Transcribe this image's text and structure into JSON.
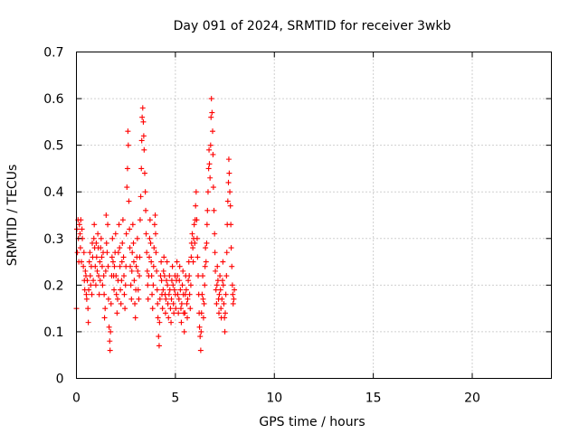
{
  "chart_data": {
    "type": "scatter",
    "title": "Day 091 of 2024, SRMTID for receiver 3wkb",
    "xlabel": "GPS time / hours",
    "ylabel": "SRMTID / TECUs",
    "xlim": [
      0,
      24
    ],
    "ylim": [
      0,
      0.7
    ],
    "xticks": [
      0,
      5,
      10,
      15,
      20
    ],
    "yticks": [
      0,
      0.1,
      0.2,
      0.3,
      0.4,
      0.5,
      0.6,
      0.7
    ],
    "xtick_labels": [
      "0",
      "5",
      "10",
      "15",
      "20"
    ],
    "ytick_labels": [
      "0",
      "0.1",
      "0.2",
      "0.3",
      "0.4",
      "0.5",
      "0.6",
      "0.7"
    ],
    "grid": true,
    "marker": "+",
    "color": "#ff0000",
    "series": [
      {
        "name": "SRMTID",
        "points": [
          [
            0.0,
            0.15
          ],
          [
            0.02,
            0.32
          ],
          [
            0.05,
            0.27
          ],
          [
            0.08,
            0.34
          ],
          [
            0.1,
            0.3
          ],
          [
            0.12,
            0.25
          ],
          [
            0.15,
            0.33
          ],
          [
            0.18,
            0.31
          ],
          [
            0.2,
            0.28
          ],
          [
            0.22,
            0.34
          ],
          [
            0.25,
            0.25
          ],
          [
            0.28,
            0.32
          ],
          [
            0.3,
            0.3
          ],
          [
            0.35,
            0.24
          ],
          [
            0.38,
            0.27
          ],
          [
            0.4,
            0.21
          ],
          [
            0.42,
            0.19
          ],
          [
            0.45,
            0.23
          ],
          [
            0.48,
            0.22
          ],
          [
            0.5,
            0.18
          ],
          [
            0.52,
            0.17
          ],
          [
            0.55,
            0.21
          ],
          [
            0.58,
            0.15
          ],
          [
            0.6,
            0.12
          ],
          [
            0.62,
            0.19
          ],
          [
            0.65,
            0.25
          ],
          [
            0.68,
            0.27
          ],
          [
            0.7,
            0.22
          ],
          [
            0.72,
            0.2
          ],
          [
            0.75,
            0.24
          ],
          [
            0.78,
            0.18
          ],
          [
            0.8,
            0.29
          ],
          [
            0.82,
            0.26
          ],
          [
            0.85,
            0.21
          ],
          [
            0.88,
            0.3
          ],
          [
            0.9,
            0.33
          ],
          [
            0.92,
            0.28
          ],
          [
            0.95,
            0.24
          ],
          [
            0.98,
            0.2
          ],
          [
            1.0,
            0.29
          ],
          [
            1.02,
            0.26
          ],
          [
            1.05,
            0.23
          ],
          [
            1.08,
            0.31
          ],
          [
            1.1,
            0.28
          ],
          [
            1.12,
            0.22
          ],
          [
            1.15,
            0.18
          ],
          [
            1.18,
            0.25
          ],
          [
            1.2,
            0.21
          ],
          [
            1.22,
            0.28
          ],
          [
            1.25,
            0.3
          ],
          [
            1.28,
            0.26
          ],
          [
            1.3,
            0.24
          ],
          [
            1.32,
            0.2
          ],
          [
            1.35,
            0.27
          ],
          [
            1.38,
            0.22
          ],
          [
            1.4,
            0.18
          ],
          [
            1.42,
            0.13
          ],
          [
            1.45,
            0.15
          ],
          [
            1.48,
            0.23
          ],
          [
            1.5,
            0.35
          ],
          [
            1.52,
            0.29
          ],
          [
            1.55,
            0.27
          ],
          [
            1.58,
            0.33
          ],
          [
            1.6,
            0.24
          ],
          [
            1.62,
            0.17
          ],
          [
            1.65,
            0.11
          ],
          [
            1.68,
            0.08
          ],
          [
            1.7,
            0.06
          ],
          [
            1.72,
            0.1
          ],
          [
            1.75,
            0.16
          ],
          [
            1.78,
            0.22
          ],
          [
            1.8,
            0.26
          ],
          [
            1.82,
            0.3
          ],
          [
            1.85,
            0.25
          ],
          [
            1.88,
            0.22
          ],
          [
            1.9,
            0.19
          ],
          [
            1.92,
            0.24
          ],
          [
            1.95,
            0.27
          ],
          [
            1.98,
            0.31
          ],
          [
            2.0,
            0.22
          ],
          [
            2.02,
            0.18
          ],
          [
            2.05,
            0.14
          ],
          [
            2.08,
            0.17
          ],
          [
            2.1,
            0.21
          ],
          [
            2.12,
            0.27
          ],
          [
            2.15,
            0.33
          ],
          [
            2.18,
            0.28
          ],
          [
            2.2,
            0.24
          ],
          [
            2.22,
            0.19
          ],
          [
            2.25,
            0.16
          ],
          [
            2.28,
            0.21
          ],
          [
            2.3,
            0.25
          ],
          [
            2.32,
            0.29
          ],
          [
            2.35,
            0.34
          ],
          [
            2.38,
            0.26
          ],
          [
            2.4,
            0.22
          ],
          [
            2.42,
            0.18
          ],
          [
            2.45,
            0.15
          ],
          [
            2.48,
            0.2
          ],
          [
            2.5,
            0.24
          ],
          [
            2.52,
            0.31
          ],
          [
            2.55,
            0.41
          ],
          [
            2.58,
            0.45
          ],
          [
            2.6,
            0.53
          ],
          [
            2.62,
            0.5
          ],
          [
            2.65,
            0.38
          ],
          [
            2.68,
            0.32
          ],
          [
            2.7,
            0.28
          ],
          [
            2.72,
            0.24
          ],
          [
            2.75,
            0.2
          ],
          [
            2.78,
            0.17
          ],
          [
            2.8,
            0.23
          ],
          [
            2.82,
            0.27
          ],
          [
            2.85,
            0.33
          ],
          [
            2.88,
            0.29
          ],
          [
            2.9,
            0.25
          ],
          [
            2.92,
            0.21
          ],
          [
            2.95,
            0.16
          ],
          [
            2.98,
            0.13
          ],
          [
            3.0,
            0.19
          ],
          [
            3.02,
            0.24
          ],
          [
            3.05,
            0.26
          ],
          [
            3.08,
            0.3
          ],
          [
            3.1,
            0.23
          ],
          [
            3.12,
            0.19
          ],
          [
            3.15,
            0.17
          ],
          [
            3.18,
            0.22
          ],
          [
            3.2,
            0.26
          ],
          [
            3.22,
            0.34
          ],
          [
            3.25,
            0.39
          ],
          [
            3.28,
            0.45
          ],
          [
            3.3,
            0.51
          ],
          [
            3.32,
            0.56
          ],
          [
            3.35,
            0.58
          ],
          [
            3.38,
            0.55
          ],
          [
            3.4,
            0.52
          ],
          [
            3.42,
            0.49
          ],
          [
            3.45,
            0.44
          ],
          [
            3.48,
            0.4
          ],
          [
            3.5,
            0.36
          ],
          [
            3.52,
            0.31
          ],
          [
            3.55,
            0.27
          ],
          [
            3.58,
            0.23
          ],
          [
            3.6,
            0.2
          ],
          [
            3.62,
            0.17
          ],
          [
            3.65,
            0.22
          ],
          [
            3.68,
            0.26
          ],
          [
            3.7,
            0.3
          ],
          [
            3.72,
            0.34
          ],
          [
            3.75,
            0.29
          ],
          [
            3.78,
            0.25
          ],
          [
            3.8,
            0.22
          ],
          [
            3.82,
            0.18
          ],
          [
            3.85,
            0.15
          ],
          [
            3.88,
            0.2
          ],
          [
            3.9,
            0.24
          ],
          [
            3.92,
            0.28
          ],
          [
            3.95,
            0.33
          ],
          [
            3.98,
            0.35
          ],
          [
            4.0,
            0.31
          ],
          [
            4.02,
            0.27
          ],
          [
            4.05,
            0.23
          ],
          [
            4.08,
            0.19
          ],
          [
            4.1,
            0.16
          ],
          [
            4.12,
            0.13
          ],
          [
            4.15,
            0.09
          ],
          [
            4.18,
            0.07
          ],
          [
            4.2,
            0.12
          ],
          [
            4.22,
            0.17
          ],
          [
            4.25,
            0.22
          ],
          [
            4.28,
            0.25
          ],
          [
            4.3,
            0.21
          ],
          [
            4.32,
            0.18
          ],
          [
            4.35,
            0.15
          ],
          [
            4.38,
            0.19
          ],
          [
            4.4,
            0.23
          ],
          [
            4.42,
            0.26
          ],
          [
            4.45,
            0.22
          ],
          [
            4.48,
            0.18
          ],
          [
            4.5,
            0.14
          ],
          [
            4.52,
            0.17
          ],
          [
            4.55,
            0.21
          ],
          [
            4.58,
            0.25
          ],
          [
            4.6,
            0.2
          ],
          [
            4.62,
            0.16
          ],
          [
            4.65,
            0.13
          ],
          [
            4.68,
            0.18
          ],
          [
            4.7,
            0.22
          ],
          [
            4.72,
            0.19
          ],
          [
            4.75,
            0.15
          ],
          [
            4.78,
            0.12
          ],
          [
            4.8,
            0.17
          ],
          [
            4.82,
            0.21
          ],
          [
            4.85,
            0.24
          ],
          [
            4.88,
            0.2
          ],
          [
            4.9,
            0.16
          ],
          [
            4.92,
            0.14
          ],
          [
            4.95,
            0.19
          ],
          [
            4.98,
            0.22
          ],
          [
            5.0,
            0.18
          ],
          [
            5.02,
            0.15
          ],
          [
            5.05,
            0.21
          ],
          [
            5.08,
            0.25
          ],
          [
            5.1,
            0.22
          ],
          [
            5.12,
            0.18
          ],
          [
            5.15,
            0.14
          ],
          [
            5.18,
            0.17
          ],
          [
            5.2,
            0.21
          ],
          [
            5.22,
            0.24
          ],
          [
            5.25,
            0.19
          ],
          [
            5.28,
            0.15
          ],
          [
            5.3,
            0.12
          ],
          [
            5.32,
            0.16
          ],
          [
            5.35,
            0.2
          ],
          [
            5.38,
            0.23
          ],
          [
            5.4,
            0.18
          ],
          [
            5.42,
            0.14
          ],
          [
            5.45,
            0.1
          ],
          [
            5.48,
            0.14
          ],
          [
            5.5,
            0.18
          ],
          [
            5.52,
            0.22
          ],
          [
            5.55,
            0.19
          ],
          [
            5.58,
            0.16
          ],
          [
            5.6,
            0.13
          ],
          [
            5.62,
            0.17
          ],
          [
            5.65,
            0.21
          ],
          [
            5.68,
            0.25
          ],
          [
            5.7,
            0.22
          ],
          [
            5.72,
            0.18
          ],
          [
            5.75,
            0.15
          ],
          [
            5.78,
            0.2
          ],
          [
            5.8,
            0.26
          ],
          [
            5.82,
            0.29
          ],
          [
            5.85,
            0.31
          ],
          [
            5.88,
            0.28
          ],
          [
            5.9,
            0.25
          ],
          [
            5.92,
            0.3
          ],
          [
            5.95,
            0.33
          ],
          [
            5.98,
            0.29
          ],
          [
            6.0,
            0.34
          ],
          [
            6.02,
            0.37
          ],
          [
            6.05,
            0.4
          ],
          [
            6.08,
            0.34
          ],
          [
            6.1,
            0.3
          ],
          [
            6.12,
            0.26
          ],
          [
            6.15,
            0.22
          ],
          [
            6.18,
            0.18
          ],
          [
            6.2,
            0.14
          ],
          [
            6.22,
            0.11
          ],
          [
            6.25,
            0.09
          ],
          [
            6.28,
            0.06
          ],
          [
            6.3,
            0.1
          ],
          [
            6.32,
            0.14
          ],
          [
            6.35,
            0.18
          ],
          [
            6.38,
            0.22
          ],
          [
            6.4,
            0.17
          ],
          [
            6.42,
            0.13
          ],
          [
            6.45,
            0.16
          ],
          [
            6.48,
            0.2
          ],
          [
            6.5,
            0.24
          ],
          [
            6.52,
            0.28
          ],
          [
            6.55,
            0.25
          ],
          [
            6.58,
            0.29
          ],
          [
            6.6,
            0.33
          ],
          [
            6.62,
            0.36
          ],
          [
            6.65,
            0.4
          ],
          [
            6.68,
            0.45
          ],
          [
            6.7,
            0.49
          ],
          [
            6.72,
            0.46
          ],
          [
            6.75,
            0.43
          ],
          [
            6.78,
            0.5
          ],
          [
            6.8,
            0.56
          ],
          [
            6.82,
            0.6
          ],
          [
            6.85,
            0.57
          ],
          [
            6.88,
            0.53
          ],
          [
            6.9,
            0.48
          ],
          [
            6.92,
            0.41
          ],
          [
            6.95,
            0.36
          ],
          [
            6.98,
            0.31
          ],
          [
            7.0,
            0.27
          ],
          [
            7.02,
            0.23
          ],
          [
            7.05,
            0.19
          ],
          [
            7.08,
            0.16
          ],
          [
            7.1,
            0.2
          ],
          [
            7.12,
            0.24
          ],
          [
            7.15,
            0.21
          ],
          [
            7.18,
            0.17
          ],
          [
            7.2,
            0.14
          ],
          [
            7.22,
            0.18
          ],
          [
            7.25,
            0.22
          ],
          [
            7.28,
            0.19
          ],
          [
            7.3,
            0.15
          ],
          [
            7.32,
            0.13
          ],
          [
            7.35,
            0.17
          ],
          [
            7.38,
            0.21
          ],
          [
            7.4,
            0.25
          ],
          [
            7.42,
            0.2
          ],
          [
            7.45,
            0.16
          ],
          [
            7.48,
            0.13
          ],
          [
            7.5,
            0.1
          ],
          [
            7.52,
            0.14
          ],
          [
            7.55,
            0.18
          ],
          [
            7.58,
            0.22
          ],
          [
            7.6,
            0.27
          ],
          [
            7.62,
            0.33
          ],
          [
            7.65,
            0.38
          ],
          [
            7.68,
            0.42
          ],
          [
            7.7,
            0.47
          ],
          [
            7.72,
            0.44
          ],
          [
            7.75,
            0.4
          ],
          [
            7.78,
            0.37
          ],
          [
            7.8,
            0.33
          ],
          [
            7.82,
            0.28
          ],
          [
            7.85,
            0.24
          ],
          [
            7.88,
            0.2
          ],
          [
            7.9,
            0.18
          ],
          [
            7.92,
            0.16
          ],
          [
            7.95,
            0.17
          ],
          [
            7.98,
            0.19
          ]
        ]
      }
    ]
  }
}
